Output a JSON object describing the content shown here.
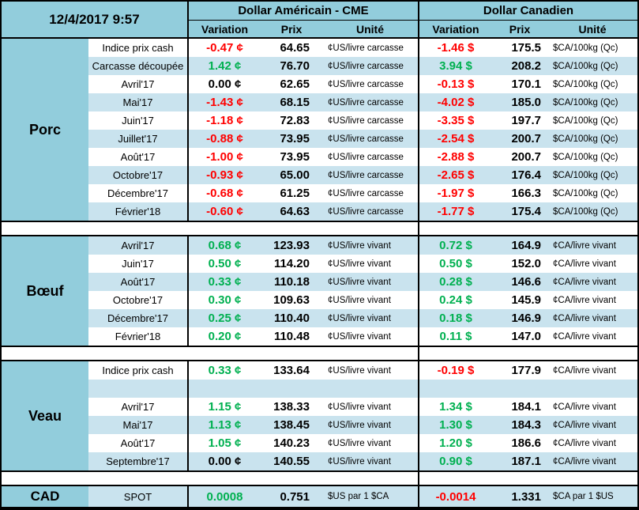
{
  "colors": {
    "header_blue": "#92CDDC",
    "stripe_blue": "#C9E3EE",
    "positive_green": "#00B050",
    "negative_red": "#FF0000",
    "neutral_black": "#000000"
  },
  "header": {
    "timestamp": "12/4/2017 9:57",
    "usd_title": "Dollar Américain - CME",
    "cad_title": "Dollar Canadien",
    "col_variation": "Variation",
    "col_prix": "Prix",
    "col_unite": "Unité"
  },
  "sections": [
    {
      "label": "Porc",
      "first_row_shaded": false,
      "rows": [
        {
          "name": "Indice prix cash",
          "us": {
            "var": "-0.47 ¢",
            "trend": "down",
            "prix": "64.65",
            "unit": "¢US/livre carcasse"
          },
          "ca": {
            "var": "-1.46 $",
            "trend": "down",
            "prix": "175.5",
            "unit": "$CA/100kg (Qc)"
          }
        },
        {
          "name": "Carcasse découpée",
          "us": {
            "var": "1.42 ¢",
            "trend": "up",
            "prix": "76.70",
            "unit": "¢US/livre carcasse"
          },
          "ca": {
            "var": "3.94 $",
            "trend": "up",
            "prix": "208.2",
            "unit": "$CA/100kg (Qc)"
          }
        },
        {
          "name": "Avril'17",
          "us": {
            "var": "0.00 ¢",
            "trend": "flat",
            "prix": "62.65",
            "unit": "¢US/livre carcasse"
          },
          "ca": {
            "var": "-0.13 $",
            "trend": "down",
            "prix": "170.1",
            "unit": "$CA/100kg (Qc)"
          }
        },
        {
          "name": "Mai'17",
          "us": {
            "var": "-1.43 ¢",
            "trend": "down",
            "prix": "68.15",
            "unit": "¢US/livre carcasse"
          },
          "ca": {
            "var": "-4.02 $",
            "trend": "down",
            "prix": "185.0",
            "unit": "$CA/100kg (Qc)"
          }
        },
        {
          "name": "Juin'17",
          "us": {
            "var": "-1.18 ¢",
            "trend": "down",
            "prix": "72.83",
            "unit": "¢US/livre carcasse"
          },
          "ca": {
            "var": "-3.35 $",
            "trend": "down",
            "prix": "197.7",
            "unit": "$CA/100kg (Qc)"
          }
        },
        {
          "name": "Juillet'17",
          "us": {
            "var": "-0.88 ¢",
            "trend": "down",
            "prix": "73.95",
            "unit": "¢US/livre carcasse"
          },
          "ca": {
            "var": "-2.54 $",
            "trend": "down",
            "prix": "200.7",
            "unit": "$CA/100kg (Qc)"
          }
        },
        {
          "name": "Août'17",
          "us": {
            "var": "-1.00 ¢",
            "trend": "down",
            "prix": "73.95",
            "unit": "¢US/livre carcasse"
          },
          "ca": {
            "var": "-2.88 $",
            "trend": "down",
            "prix": "200.7",
            "unit": "$CA/100kg (Qc)"
          }
        },
        {
          "name": "Octobre'17",
          "us": {
            "var": "-0.93 ¢",
            "trend": "down",
            "prix": "65.00",
            "unit": "¢US/livre carcasse"
          },
          "ca": {
            "var": "-2.65 $",
            "trend": "down",
            "prix": "176.4",
            "unit": "$CA/100kg (Qc)"
          }
        },
        {
          "name": "Décembre'17",
          "us": {
            "var": "-0.68 ¢",
            "trend": "down",
            "prix": "61.25",
            "unit": "¢US/livre carcasse"
          },
          "ca": {
            "var": "-1.97 $",
            "trend": "down",
            "prix": "166.3",
            "unit": "$CA/100kg (Qc)"
          }
        },
        {
          "name": "Février'18",
          "us": {
            "var": "-0.60 ¢",
            "trend": "down",
            "prix": "64.63",
            "unit": "¢US/livre carcasse"
          },
          "ca": {
            "var": "-1.77 $",
            "trend": "down",
            "prix": "175.4",
            "unit": "$CA/100kg (Qc)"
          }
        }
      ]
    },
    {
      "label": "Bœuf",
      "first_row_shaded": true,
      "rows": [
        {
          "name": "Avril'17",
          "us": {
            "var": "0.68 ¢",
            "trend": "up",
            "prix": "123.93",
            "unit": "¢US/livre vivant"
          },
          "ca": {
            "var": "0.72 $",
            "trend": "up",
            "prix": "164.9",
            "unit": "¢CA/livre vivant"
          }
        },
        {
          "name": "Juin'17",
          "us": {
            "var": "0.50 ¢",
            "trend": "up",
            "prix": "114.20",
            "unit": "¢US/livre vivant"
          },
          "ca": {
            "var": "0.50 $",
            "trend": "up",
            "prix": "152.0",
            "unit": "¢CA/livre vivant"
          }
        },
        {
          "name": "Août'17",
          "us": {
            "var": "0.33 ¢",
            "trend": "up",
            "prix": "110.18",
            "unit": "¢US/livre vivant"
          },
          "ca": {
            "var": "0.28 $",
            "trend": "up",
            "prix": "146.6",
            "unit": "¢CA/livre vivant"
          }
        },
        {
          "name": "Octobre'17",
          "us": {
            "var": "0.30 ¢",
            "trend": "up",
            "prix": "109.63",
            "unit": "¢US/livre vivant"
          },
          "ca": {
            "var": "0.24 $",
            "trend": "up",
            "prix": "145.9",
            "unit": "¢CA/livre vivant"
          }
        },
        {
          "name": "Décembre'17",
          "us": {
            "var": "0.25 ¢",
            "trend": "up",
            "prix": "110.40",
            "unit": "¢US/livre vivant"
          },
          "ca": {
            "var": "0.18 $",
            "trend": "up",
            "prix": "146.9",
            "unit": "¢CA/livre vivant"
          }
        },
        {
          "name": "Février'18",
          "us": {
            "var": "0.20 ¢",
            "trend": "up",
            "prix": "110.48",
            "unit": "¢US/livre vivant"
          },
          "ca": {
            "var": "0.11 $",
            "trend": "up",
            "prix": "147.0",
            "unit": "¢CA/livre vivant"
          }
        }
      ]
    },
    {
      "label": "Veau",
      "first_row_shaded": false,
      "rows": [
        {
          "name": "Indice prix cash",
          "us": {
            "var": "0.33 ¢",
            "trend": "up",
            "prix": "133.64",
            "unit": "¢US/livre vivant"
          },
          "ca": {
            "var": "-0.19 $",
            "trend": "down",
            "prix": "177.9",
            "unit": "¢CA/livre vivant"
          }
        },
        {
          "name": "",
          "us": {
            "var": "",
            "trend": "flat",
            "prix": "",
            "unit": ""
          },
          "ca": {
            "var": "",
            "trend": "flat",
            "prix": "",
            "unit": ""
          }
        },
        {
          "name": "Avril'17",
          "us": {
            "var": "1.15 ¢",
            "trend": "up",
            "prix": "138.33",
            "unit": "¢US/livre vivant"
          },
          "ca": {
            "var": "1.34 $",
            "trend": "up",
            "prix": "184.1",
            "unit": "¢CA/livre vivant"
          }
        },
        {
          "name": "Mai'17",
          "us": {
            "var": "1.13 ¢",
            "trend": "up",
            "prix": "138.45",
            "unit": "¢US/livre vivant"
          },
          "ca": {
            "var": "1.30 $",
            "trend": "up",
            "prix": "184.3",
            "unit": "¢CA/livre vivant"
          }
        },
        {
          "name": "Août'17",
          "us": {
            "var": "1.05 ¢",
            "trend": "up",
            "prix": "140.23",
            "unit": "¢US/livre vivant"
          },
          "ca": {
            "var": "1.20 $",
            "trend": "up",
            "prix": "186.6",
            "unit": "¢CA/livre vivant"
          }
        },
        {
          "name": "Septembre'17",
          "us": {
            "var": "0.00 ¢",
            "trend": "flat",
            "prix": "140.55",
            "unit": "¢US/livre vivant"
          },
          "ca": {
            "var": "0.90 $",
            "trend": "up",
            "prix": "187.1",
            "unit": "¢CA/livre vivant"
          }
        }
      ]
    }
  ],
  "spot": {
    "label": "CAD",
    "name": "SPOT",
    "us": {
      "var": "0.0008",
      "trend": "up",
      "prix": "0.751",
      "unit": "$US par 1 $CA"
    },
    "ca": {
      "var": "-0.0014",
      "trend": "down",
      "prix": "1.331",
      "unit": "$CA par 1 $US"
    }
  }
}
